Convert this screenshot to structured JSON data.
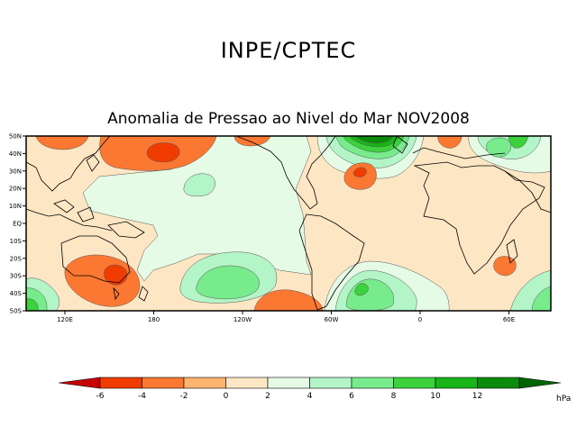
{
  "header": {
    "institution": "INPE/CPTEC",
    "map_title": "Anomalia de Pressao ao Nivel do Mar NOV2008"
  },
  "axes": {
    "latitude_labels": [
      "50N",
      "40N",
      "30N",
      "20N",
      "10N",
      "EQ",
      "10S",
      "20S",
      "30S",
      "40S",
      "50S"
    ],
    "longitude_labels": [
      "120E",
      "180",
      "120W",
      "60W",
      "0",
      "60E"
    ]
  },
  "colorbar": {
    "tick_labels": [
      "-6",
      "-4",
      "-2",
      "0",
      "2",
      "4",
      "6",
      "8",
      "10",
      "12"
    ],
    "unit": "hPa",
    "colors": [
      "#c80000",
      "#f03c00",
      "#fa7832",
      "#fcb46e",
      "#fde6c3",
      "#e6fbe6",
      "#b4f5c8",
      "#78eb8c",
      "#3cd23c",
      "#18b418",
      "#0a8c0a",
      "#006400"
    ]
  }
}
